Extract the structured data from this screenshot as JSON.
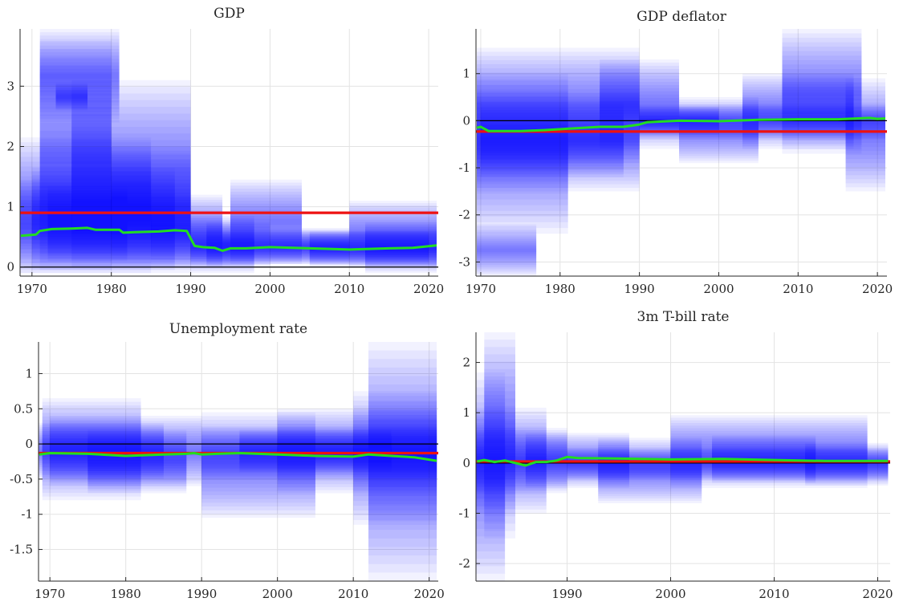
{
  "chart_data": [
    {
      "type": "area",
      "title": "GDP",
      "xlim": [
        1968.5,
        2021.2
      ],
      "ylim": [
        -0.15,
        3.95
      ],
      "xticks": [
        1970,
        1980,
        1990,
        2000,
        2010,
        2020
      ],
      "xtick_labels": [
        "1970",
        "1980",
        "1990",
        "2000",
        "2010",
        "2020"
      ],
      "yticks": [
        0,
        1,
        2,
        3
      ],
      "ytick_labels": [
        "0",
        "1",
        "2",
        "3"
      ],
      "grid": true,
      "zero_line": 0,
      "reference_value": 0.9,
      "series": [
        {
          "color": "#22dd22",
          "x": [
            1968.6,
            1970.5,
            1971,
            1972.5,
            1975,
            1977,
            1978,
            1981,
            1981.5,
            1983,
            1986,
            1988,
            1989.5,
            1990.5,
            1991.5,
            1993,
            1994,
            1995,
            1997,
            2000,
            2005,
            2010,
            2015,
            2018,
            2021
          ],
          "values": [
            0.52,
            0.54,
            0.6,
            0.63,
            0.64,
            0.65,
            0.62,
            0.62,
            0.57,
            0.58,
            0.59,
            0.61,
            0.6,
            0.35,
            0.33,
            0.32,
            0.27,
            0.31,
            0.31,
            0.33,
            0.31,
            0.29,
            0.31,
            0.32,
            0.36
          ]
        }
      ],
      "bands": [
        {
          "x": [
            1968.5,
            1990
          ],
          "y": [
            -0.1,
            1.45
          ]
        },
        {
          "x": [
            1970,
            1988
          ],
          "y": [
            -0.05,
            1.65
          ]
        },
        {
          "x": [
            1972,
            1982
          ],
          "y": [
            0.1,
            1.35
          ]
        },
        {
          "x": [
            1968.5,
            1985
          ],
          "y": [
            -0.1,
            2.15
          ]
        },
        {
          "x": [
            1971,
            1980
          ],
          "y": [
            -0.05,
            3.75
          ]
        },
        {
          "x": [
            1973,
            1977
          ],
          "y": [
            2.6,
            3.05
          ]
        },
        {
          "x": [
            1975,
            1990
          ],
          "y": [
            0,
            3.1
          ]
        },
        {
          "x": [
            1980,
            1990
          ],
          "y": [
            0.05,
            2.0
          ]
        },
        {
          "x": [
            1985,
            1994
          ],
          "y": [
            0.0,
            1.2
          ]
        },
        {
          "x": [
            1990,
            2020
          ],
          "y": [
            0.05,
            0.6
          ]
        },
        {
          "x": [
            1992,
            2000
          ],
          "y": [
            0.0,
            0.75
          ]
        },
        {
          "x": [
            2000,
            2010
          ],
          "y": [
            0.05,
            0.65
          ]
        },
        {
          "x": [
            2005,
            2021
          ],
          "y": [
            0.0,
            0.6
          ]
        },
        {
          "x": [
            2010,
            2021
          ],
          "y": [
            0.0,
            1.1
          ]
        },
        {
          "x": [
            1995,
            2004
          ],
          "y": [
            0.05,
            1.45
          ]
        },
        {
          "x": [
            1990,
            1998
          ],
          "y": [
            -0.1,
            0.85
          ]
        },
        {
          "x": [
            2012,
            2021
          ],
          "y": [
            -0.1,
            0.75
          ]
        },
        {
          "x": [
            1971,
            1981
          ],
          "y": [
            2.4,
            3.95
          ]
        }
      ]
    },
    {
      "type": "area",
      "title": "GDP deflator",
      "xlim": [
        1969.4,
        2021.2
      ],
      "ylim": [
        -3.3,
        1.95
      ],
      "xticks": [
        1970,
        1980,
        1990,
        2000,
        2010,
        2020
      ],
      "xtick_labels": [
        "1970",
        "1980",
        "1990",
        "2000",
        "2010",
        "2020"
      ],
      "yticks": [
        -3,
        -2,
        -1,
        0,
        1
      ],
      "ytick_labels": [
        "-3",
        "-2",
        "-1",
        "0",
        "1"
      ],
      "grid": true,
      "zero_line": 0,
      "reference_value": -0.23,
      "series": [
        {
          "color": "#22dd22",
          "x": [
            1969.5,
            1970,
            1971,
            1975,
            1978,
            1982,
            1985,
            1988,
            1990,
            1991,
            1995,
            2000,
            2005,
            2010,
            2015,
            2019,
            2020,
            2021
          ],
          "values": [
            -0.15,
            -0.13,
            -0.22,
            -0.22,
            -0.2,
            -0.16,
            -0.13,
            -0.13,
            -0.08,
            -0.03,
            0.0,
            -0.01,
            0.02,
            0.03,
            0.03,
            0.06,
            0.04,
            0.05
          ]
        }
      ],
      "bands": [
        {
          "x": [
            1969.5,
            1990
          ],
          "y": [
            -1.5,
            0.6
          ]
        },
        {
          "x": [
            1970,
            1988
          ],
          "y": [
            -1.2,
            0.4
          ]
        },
        {
          "x": [
            1969.5,
            1977
          ],
          "y": [
            -3.3,
            -2.2
          ]
        },
        {
          "x": [
            1969.5,
            1981
          ],
          "y": [
            -2.4,
            1.0
          ]
        },
        {
          "x": [
            1969.5,
            1990
          ],
          "y": [
            -0.9,
            1.55
          ]
        },
        {
          "x": [
            1985,
            1995
          ],
          "y": [
            -0.6,
            1.3
          ]
        },
        {
          "x": [
            1990,
            2021
          ],
          "y": [
            -0.4,
            0.35
          ]
        },
        {
          "x": [
            1995,
            2005
          ],
          "y": [
            -0.9,
            0.5
          ]
        },
        {
          "x": [
            2003,
            2017
          ],
          "y": [
            -0.6,
            1.0
          ]
        },
        {
          "x": [
            2008,
            2018
          ],
          "y": [
            -0.7,
            1.95
          ]
        },
        {
          "x": [
            2016,
            2021
          ],
          "y": [
            -1.5,
            0.9
          ]
        },
        {
          "x": [
            1990,
            2000
          ],
          "y": [
            -0.3,
            0.3
          ]
        }
      ]
    },
    {
      "type": "area",
      "title": "Unemployment rate",
      "xlim": [
        1968.5,
        2021.2
      ],
      "ylim": [
        -1.95,
        1.45
      ],
      "xticks": [
        1970,
        1980,
        1990,
        2000,
        2010,
        2020
      ],
      "xtick_labels": [
        "1970",
        "1980",
        "1990",
        "2000",
        "2010",
        "2020"
      ],
      "yticks": [
        -1.5,
        -1,
        -0.5,
        0,
        0.5,
        1
      ],
      "ytick_labels": [
        "-1.5",
        "-1",
        "-0.5",
        "0",
        "0.5",
        "1"
      ],
      "grid": true,
      "zero_line": 0,
      "reference_value": -0.13,
      "series": [
        {
          "color": "#22dd22",
          "x": [
            1968.6,
            1970,
            1975,
            1980,
            1985,
            1988,
            1989,
            1990,
            1992,
            1995,
            2000,
            2005,
            2010,
            2012,
            2015,
            2018,
            2021
          ],
          "values": [
            -0.15,
            -0.13,
            -0.14,
            -0.17,
            -0.15,
            -0.14,
            -0.13,
            -0.15,
            -0.14,
            -0.13,
            -0.15,
            -0.17,
            -0.18,
            -0.15,
            -0.17,
            -0.19,
            -0.24
          ]
        }
      ],
      "bands": [
        {
          "x": [
            1968.5,
            1985
          ],
          "y": [
            -0.5,
            0.3
          ]
        },
        {
          "x": [
            1970,
            1990
          ],
          "y": [
            -0.6,
            0.4
          ]
        },
        {
          "x": [
            1969,
            1982
          ],
          "y": [
            -0.8,
            0.65
          ]
        },
        {
          "x": [
            1975,
            1988
          ],
          "y": [
            -0.7,
            0.2
          ]
        },
        {
          "x": [
            1990,
            2021
          ],
          "y": [
            -0.5,
            0.25
          ]
        },
        {
          "x": [
            1990,
            2005
          ],
          "y": [
            -1.05,
            0.45
          ]
        },
        {
          "x": [
            2000,
            2021
          ],
          "y": [
            -0.7,
            0.5
          ]
        },
        {
          "x": [
            2012,
            2021
          ],
          "y": [
            -1.95,
            1.45
          ]
        },
        {
          "x": [
            2010,
            2021
          ],
          "y": [
            -1.15,
            0.75
          ]
        },
        {
          "x": [
            1995,
            2015
          ],
          "y": [
            -0.4,
            0.2
          ]
        }
      ]
    },
    {
      "type": "area",
      "title": "3m T-bill rate",
      "xlim": [
        1981.2,
        2021.2
      ],
      "ylim": [
        -2.35,
        2.6
      ],
      "xticks": [
        1990,
        2000,
        2010,
        2020
      ],
      "xtick_labels": [
        "1990",
        "2000",
        "2010",
        "2020"
      ],
      "yticks": [
        -2,
        -1,
        0,
        1,
        2
      ],
      "ytick_labels": [
        "-2",
        "-1",
        "0",
        "1",
        "2"
      ],
      "grid": true,
      "zero_line": 0,
      "reference_value": 0.03,
      "series": [
        {
          "color": "#22dd22",
          "x": [
            1981.3,
            1982,
            1983,
            1984,
            1985,
            1986,
            1987,
            1988,
            1989,
            1990,
            1991,
            1995,
            2000,
            2005,
            2010,
            2015,
            2021
          ],
          "values": [
            0.03,
            0.06,
            0.02,
            0.05,
            0.0,
            -0.05,
            0.02,
            0.02,
            0.05,
            0.12,
            0.1,
            0.09,
            0.07,
            0.08,
            0.06,
            0.04,
            0.04
          ]
        }
      ],
      "bands": [
        {
          "x": [
            1981.2,
            1988
          ],
          "y": [
            -1.0,
            1.1
          ]
        },
        {
          "x": [
            1981.2,
            1984
          ],
          "y": [
            -2.35,
            1.8
          ]
        },
        {
          "x": [
            1982,
            1985
          ],
          "y": [
            -1.5,
            2.6
          ]
        },
        {
          "x": [
            1981.2,
            1990
          ],
          "y": [
            -0.6,
            0.7
          ]
        },
        {
          "x": [
            1986,
            1996
          ],
          "y": [
            -0.5,
            0.6
          ]
        },
        {
          "x": [
            1990,
            2021
          ],
          "y": [
            -0.35,
            0.3
          ]
        },
        {
          "x": [
            1993,
            2003
          ],
          "y": [
            -0.8,
            0.5
          ]
        },
        {
          "x": [
            2000,
            2019
          ],
          "y": [
            -0.5,
            0.95
          ]
        },
        {
          "x": [
            2004,
            2014
          ],
          "y": [
            -0.4,
            0.55
          ]
        },
        {
          "x": [
            2013,
            2021
          ],
          "y": [
            -0.45,
            0.4
          ]
        }
      ]
    }
  ]
}
